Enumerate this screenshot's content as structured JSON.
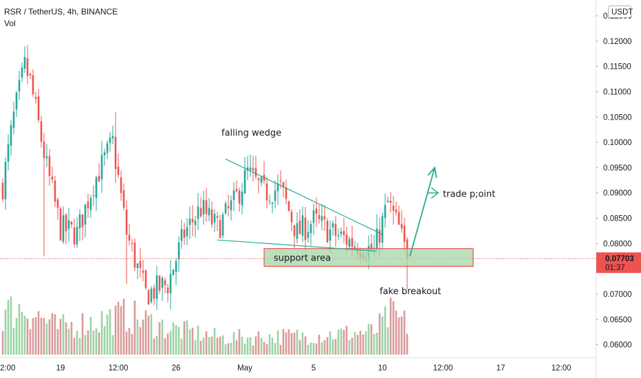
{
  "legend": {
    "symbol": "RSR / TetherUS, 4h, BINANCE",
    "volume_label": "Vol"
  },
  "price_axis": {
    "currency": "USDT",
    "current_price": "0.07703",
    "countdown": "01:37"
  },
  "colors": {
    "up": "#26a69a",
    "down": "#ef5350",
    "vol_up": "#9bd3a4",
    "vol_down": "#d99a9a",
    "drawing": "#22ab94",
    "support_fill": "#a5d6a7",
    "support_border": "#e53935",
    "price_line": "#ef5350"
  },
  "chart_data": {
    "type": "candlestick",
    "symbol": "RSR / TetherUS",
    "interval": "4h",
    "exchange": "BINANCE",
    "y_tick_labels": [
      "0.12500",
      "0.12000",
      "0.11500",
      "0.11000",
      "0.10500",
      "0.10000",
      "0.09500",
      "0.09000",
      "0.08500",
      "0.08000",
      "0.07500",
      "0.07000",
      "0.06500",
      "0.06000"
    ],
    "y_ticks": [
      0.125,
      0.12,
      0.115,
      0.11,
      0.105,
      0.1,
      0.095,
      0.09,
      0.085,
      0.08,
      0.075,
      0.07,
      0.065,
      0.06
    ],
    "ylim": [
      0.0575,
      0.1265
    ],
    "x_tick_labels": [
      "2:00",
      "19",
      "12:00",
      "26",
      "May",
      "5",
      "10",
      "12:00",
      "17",
      "12:00"
    ],
    "x_ticks_bar_index": [
      0,
      21,
      42,
      63,
      88,
      113,
      138,
      160,
      181,
      203
    ],
    "last_price": 0.07703,
    "ohlc_key_points": [
      {
        "bar": 0,
        "close": 0.0915
      },
      {
        "bar": 4,
        "close": 0.105
      },
      {
        "bar": 8,
        "close": 0.115
      },
      {
        "bar": 10,
        "close": 0.112
      },
      {
        "bar": 16,
        "close": 0.095
      },
      {
        "bar": 21,
        "close": 0.083
      },
      {
        "bar": 27,
        "close": 0.082
      },
      {
        "bar": 33,
        "close": 0.092
      },
      {
        "bar": 40,
        "close": 0.1
      },
      {
        "bar": 45,
        "close": 0.082
      },
      {
        "bar": 52,
        "close": 0.07
      },
      {
        "bar": 60,
        "close": 0.072
      },
      {
        "bar": 66,
        "close": 0.082
      },
      {
        "bar": 72,
        "close": 0.087
      },
      {
        "bar": 78,
        "close": 0.083
      },
      {
        "bar": 84,
        "close": 0.088
      },
      {
        "bar": 89,
        "close": 0.094
      },
      {
        "bar": 95,
        "close": 0.09
      },
      {
        "bar": 101,
        "close": 0.091
      },
      {
        "bar": 107,
        "close": 0.082
      },
      {
        "bar": 113,
        "close": 0.0845
      },
      {
        "bar": 120,
        "close": 0.082
      },
      {
        "bar": 128,
        "close": 0.08
      },
      {
        "bar": 135,
        "close": 0.0785
      },
      {
        "bar": 140,
        "close": 0.088
      },
      {
        "bar": 144,
        "close": 0.083
      },
      {
        "bar": 147,
        "close": 0.077
      }
    ],
    "volume": {
      "ylim": [
        0,
        1
      ],
      "key_points": [
        {
          "bar": 0,
          "value": 0.55
        },
        {
          "bar": 8,
          "value": 0.62
        },
        {
          "bar": 20,
          "value": 0.35
        },
        {
          "bar": 45,
          "value": 0.52
        },
        {
          "bar": 60,
          "value": 0.35
        },
        {
          "bar": 80,
          "value": 0.22
        },
        {
          "bar": 110,
          "value": 0.25
        },
        {
          "bar": 135,
          "value": 0.3
        },
        {
          "bar": 141,
          "value": 0.52
        },
        {
          "bar": 147,
          "value": 0.4
        }
      ]
    },
    "annotations": [
      {
        "label": "falling wedge",
        "type": "wedge",
        "upper_line": [
          {
            "bar": 81,
            "price": 0.0967
          },
          {
            "bar": 138,
            "price": 0.0818
          }
        ],
        "lower_line": [
          {
            "bar": 78,
            "price": 0.0807
          },
          {
            "bar": 136,
            "price": 0.0785
          }
        ]
      },
      {
        "label": "support area",
        "type": "rectangle",
        "bar_from": 95,
        "bar_to": 171,
        "price_from": 0.0755,
        "price_to": 0.079
      },
      {
        "label": "trade p;oint",
        "type": "arrow",
        "from": {
          "bar": 148,
          "price": 0.0775
        },
        "to": {
          "bar": 155,
          "price": 0.095
        }
      },
      {
        "label": "fake breakout",
        "type": "text",
        "bar": 147,
        "price": 0.07
      }
    ]
  }
}
